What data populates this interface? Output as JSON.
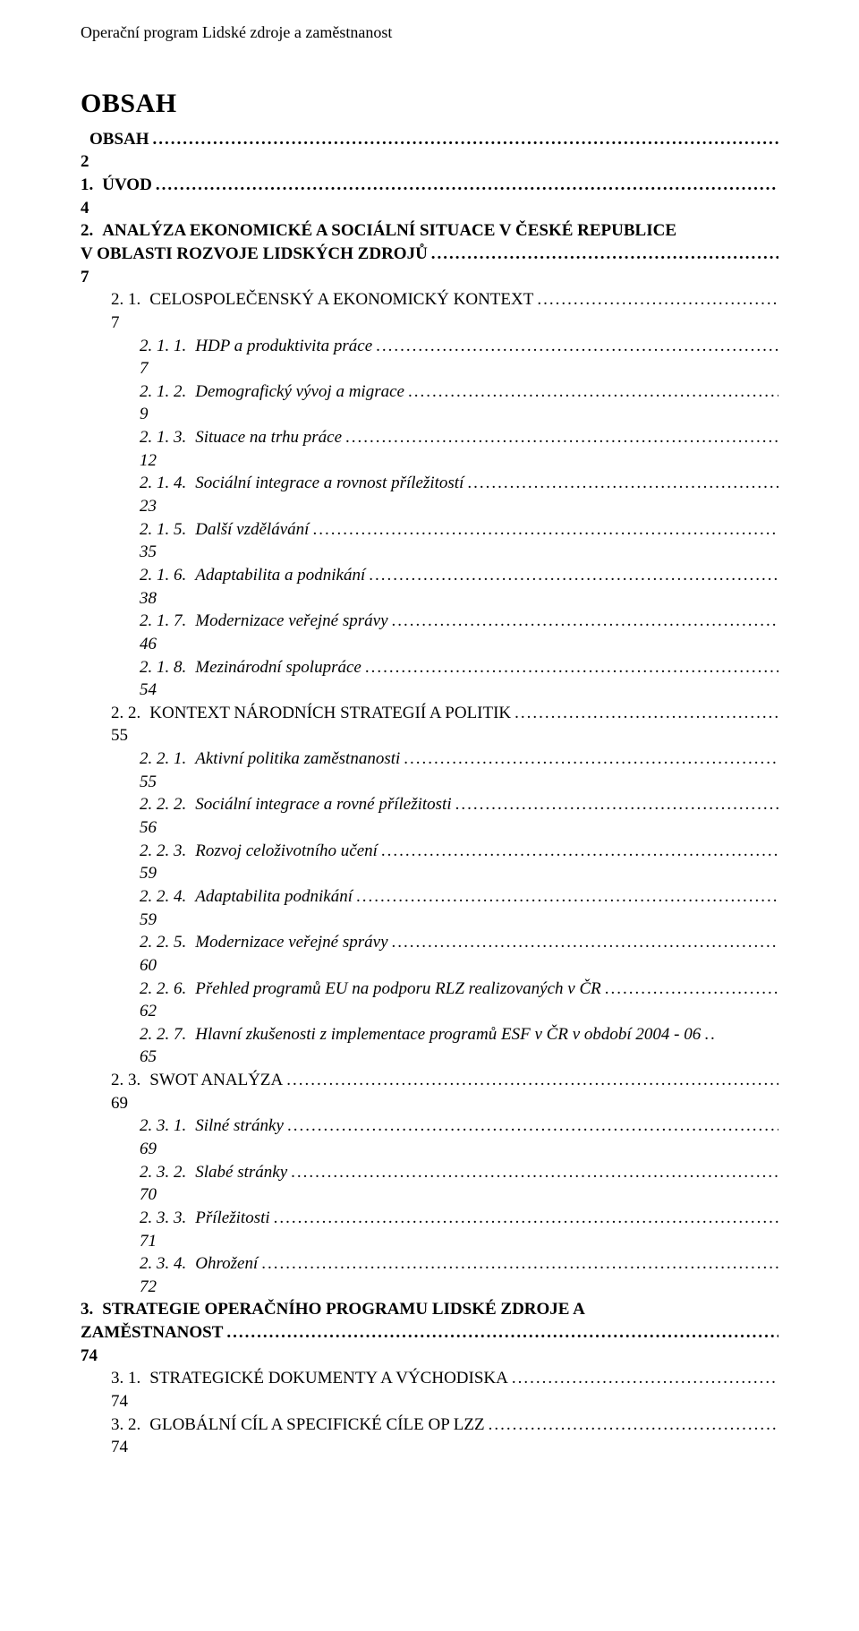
{
  "header": "Operační program Lidské zdroje a zaměstnanost",
  "title": "OBSAH",
  "dots": "..............................................................................................................................................................................................................................................................",
  "toc": [
    {
      "level": 0,
      "num": "",
      "label": "OBSAH",
      "page": "2",
      "italic": false
    },
    {
      "level": 0,
      "num": "1.",
      "label": "ÚVOD",
      "page": "4",
      "italic": false
    },
    {
      "level": 0,
      "num": "2.",
      "label": "ANALÝZA EKONOMICKÉ A SOCIÁLNÍ SITUACE V ČESKÉ REPUBLICE V OBLASTI ROZVOJE LIDSKÝCH ZDROJŮ",
      "page": "7",
      "italic": false,
      "multiline": true
    },
    {
      "level": 1,
      "num": "2. 1.",
      "label": "CELOSPOLEČENSKÝ A EKONOMICKÝ KONTEXT",
      "page": "7",
      "italic": false,
      "smallcaps": true
    },
    {
      "level": 2,
      "num": "2. 1. 1.",
      "label": "HDP a produktivita práce",
      "page": "7",
      "italic": true
    },
    {
      "level": 2,
      "num": "2. 1. 2.",
      "label": "Demografický vývoj a migrace",
      "page": "9",
      "italic": true
    },
    {
      "level": 2,
      "num": "2. 1. 3.",
      "label": "Situace na trhu práce",
      "page": "12",
      "italic": true
    },
    {
      "level": 2,
      "num": "2. 1. 4.",
      "label": "Sociální integrace a rovnost příležitostí",
      "page": "23",
      "italic": true
    },
    {
      "level": 2,
      "num": "2. 1. 5.",
      "label": "Další vzdělávání",
      "page": "35",
      "italic": true
    },
    {
      "level": 2,
      "num": "2. 1. 6.",
      "label": "Adaptabilita a podnikání",
      "page": "38",
      "italic": true
    },
    {
      "level": 2,
      "num": "2. 1. 7.",
      "label": "Modernizace veřejné správy",
      "page": "46",
      "italic": true
    },
    {
      "level": 2,
      "num": "2. 1. 8.",
      "label": "Mezinárodní spolupráce",
      "page": "54",
      "italic": true
    },
    {
      "level": 1,
      "num": "2. 2.",
      "label": "KONTEXT NÁRODNÍCH STRATEGIÍ A POLITIK",
      "page": "55",
      "italic": false,
      "smallcaps": true
    },
    {
      "level": 2,
      "num": "2. 2. 1.",
      "label": "Aktivní politika zaměstnanosti",
      "page": "55",
      "italic": true
    },
    {
      "level": 2,
      "num": "2. 2. 2.",
      "label": "Sociální integrace a rovné příležitosti",
      "page": "56",
      "italic": true
    },
    {
      "level": 2,
      "num": "2. 2. 3.",
      "label": "Rozvoj celoživotního učení",
      "page": "59",
      "italic": true
    },
    {
      "level": 2,
      "num": "2. 2. 4.",
      "label": "Adaptabilita podnikání",
      "page": "59",
      "italic": true
    },
    {
      "level": 2,
      "num": "2. 2. 5.",
      "label": "Modernizace veřejné správy",
      "page": "60",
      "italic": true
    },
    {
      "level": 2,
      "num": "2. 2. 6.",
      "label": "Přehled programů EU na podporu RLZ realizovaných v ČR",
      "page": "62",
      "italic": true
    },
    {
      "level": 2,
      "num": "2. 2. 7.",
      "label": "Hlavní zkušenosti z implementace programů ESF v ČR v období 2004 - 06",
      "page": "65",
      "italic": true,
      "tight": true
    },
    {
      "level": 1,
      "num": "2. 3.",
      "label": "SWOT ANALÝZA",
      "page": "69",
      "italic": false,
      "smallcaps": true
    },
    {
      "level": 2,
      "num": "2. 3. 1.",
      "label": "Silné stránky",
      "page": "69",
      "italic": true
    },
    {
      "level": 2,
      "num": "2. 3. 2.",
      "label": "Slabé stránky",
      "page": "70",
      "italic": true
    },
    {
      "level": 2,
      "num": "2. 3. 3.",
      "label": "Příležitosti",
      "page": "71",
      "italic": true
    },
    {
      "level": 2,
      "num": "2. 3. 4.",
      "label": "Ohrožení",
      "page": "72",
      "italic": true
    },
    {
      "level": 0,
      "num": "3.",
      "label": "STRATEGIE OPERAČNÍHO PROGRAMU LIDSKÉ ZDROJE A ZAMĚSTNANOST",
      "page": "74",
      "italic": false,
      "multiline": true
    },
    {
      "level": 1,
      "num": "3. 1.",
      "label": "STRATEGICKÉ DOKUMENTY A VÝCHODISKA",
      "page": "74",
      "italic": false,
      "smallcaps": true
    },
    {
      "level": 1,
      "num": "3. 2.",
      "label": "GLOBÁLNÍ CÍL A SPECIFICKÉ CÍLE OP LZZ",
      "page": "74",
      "italic": false,
      "smallcaps": true
    }
  ]
}
